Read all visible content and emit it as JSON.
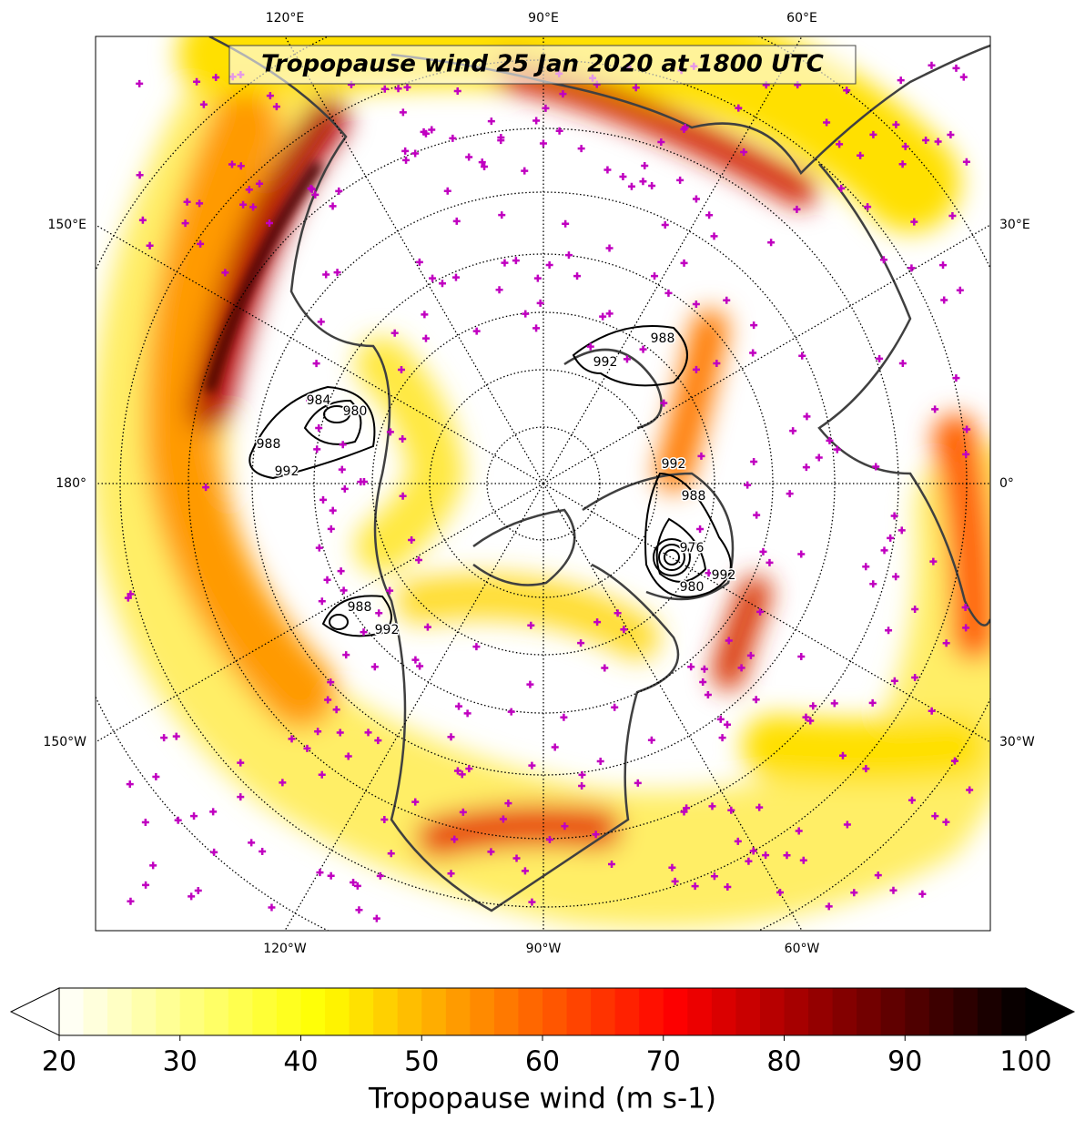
{
  "title": "Tropopause wind 25 Jan 2020 at 1800 UTC",
  "graticule_labels": {
    "top": [
      "120°E",
      "90°E",
      "60°E"
    ],
    "left": [
      "150°E",
      "180°",
      "150°W"
    ],
    "right": [
      "30°E",
      "0°",
      "30°W"
    ],
    "bottom": [
      "120°W",
      "90°W",
      "60°W"
    ]
  },
  "contour_labels": [
    984,
    980,
    988,
    992,
    988,
    992,
    988,
    992,
    992,
    988,
    976,
    980,
    992
  ],
  "colorbar": {
    "label": "Tropopause wind (m s-1)",
    "lim": [
      20,
      100
    ],
    "ticks": [
      20,
      30,
      40,
      50,
      60,
      70,
      80,
      90,
      100
    ]
  }
}
